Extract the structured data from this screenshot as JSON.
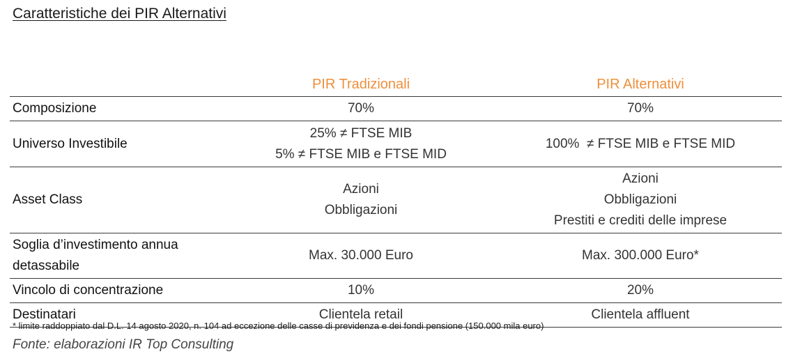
{
  "title": "Caratteristiche dei PIR Alternativi",
  "table": {
    "columns": [
      "",
      "PIR Tradizionali",
      "PIR Alternativi"
    ],
    "rows": [
      {
        "label": "Composizione",
        "trad": [
          "70%"
        ],
        "alt": [
          "70%"
        ]
      },
      {
        "label": "Universo Investibile",
        "trad": [
          "25% ≠ FTSE MIB",
          "5% ≠ FTSE MIB e FTSE MID"
        ],
        "alt": [
          "100%  ≠ FTSE MIB e FTSE MID"
        ]
      },
      {
        "label": "Asset Class",
        "trad": [
          "Azioni",
          "Obbligazioni"
        ],
        "alt": [
          "Azioni",
          "Obbligazioni",
          "Prestiti e crediti delle imprese"
        ]
      },
      {
        "label": "Soglia d’investimento annua detassabile",
        "trad": [
          "Max. 30.000 Euro"
        ],
        "alt": [
          "Max. 300.000 Euro*"
        ]
      },
      {
        "label": "Vincolo di concentrazione",
        "trad": [
          "10%"
        ],
        "alt": [
          "20%"
        ]
      },
      {
        "label": "Destinatari",
        "trad": [
          "Clientela retail"
        ],
        "alt": [
          "Clientela affluent"
        ]
      }
    ]
  },
  "footnote": "* limite raddoppiato dal D.L. 14 agosto 2020, n. 104  ad eccezione delle casse di previdenza e dei fondi pensione (150.000 mila euro)",
  "source": "Fonte: elaborazioni IR Top Consulting",
  "colors": {
    "header_accent": "#ee8f3b",
    "rule": "#3a3a3a"
  }
}
